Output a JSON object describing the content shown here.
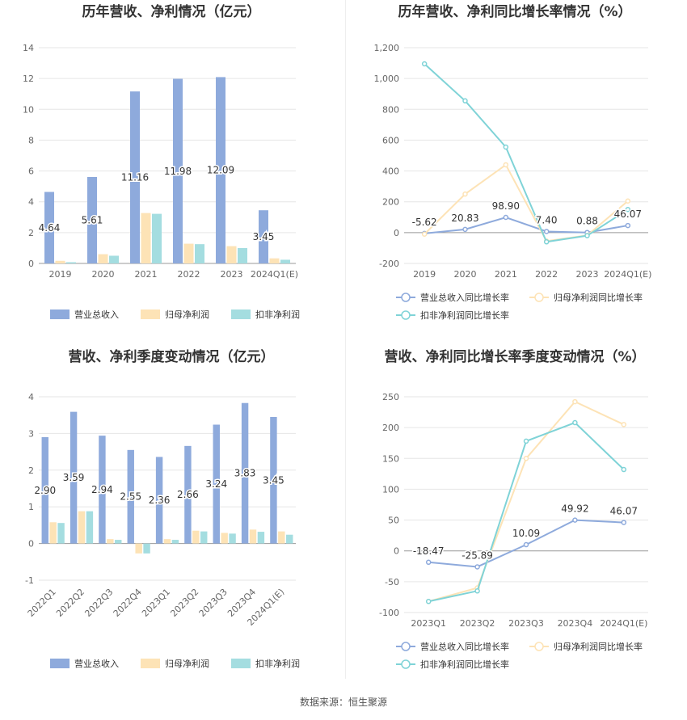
{
  "source": "数据来源：恒生聚源",
  "colors": {
    "revenue": "#8eaadc",
    "netprofit": "#fde3b6",
    "deducted": "#a4dde0",
    "revenue_line": "#8eaadc",
    "netprofit_line": "#fde3b6",
    "deducted_line": "#7fd3d7"
  },
  "chart_data": [
    {
      "id": "annual-bar",
      "type": "bar",
      "title": "历年营收、净利情况（亿元）",
      "categories": [
        "2019",
        "2020",
        "2021",
        "2022",
        "2023",
        "2024Q1(E)"
      ],
      "ylim": [
        0,
        14
      ],
      "yticks": [
        "0",
        "2",
        "4",
        "6",
        "8",
        "10",
        "12",
        "14"
      ],
      "yticks_values": [
        0,
        2,
        4,
        6,
        8,
        10,
        12,
        14
      ],
      "series": [
        {
          "name": "营业总收入",
          "values": [
            4.64,
            5.61,
            11.16,
            11.98,
            12.09,
            3.45
          ],
          "labels": [
            "4.64",
            "5.61",
            "11.16",
            "11.98",
            "12.09",
            "3.45"
          ]
        },
        {
          "name": "归母净利润",
          "values": [
            0.17,
            0.6,
            3.27,
            1.28,
            1.12,
            0.33
          ]
        },
        {
          "name": "扣非净利润",
          "values": [
            0.08,
            0.5,
            3.22,
            1.25,
            1.0,
            0.24
          ]
        }
      ],
      "legend": "bottom"
    },
    {
      "id": "annual-line",
      "type": "line",
      "title": "历年营收、净利同比增长率情况（%）",
      "categories": [
        "2019",
        "2020",
        "2021",
        "2022",
        "2023",
        "2024Q1(E)"
      ],
      "ylim": [
        -200,
        1200
      ],
      "yticks": [
        "-200",
        "0",
        "200",
        "400",
        "600",
        "800",
        "1,000",
        "1,200"
      ],
      "yticks_values": [
        -200,
        0,
        200,
        400,
        600,
        800,
        1000,
        1200
      ],
      "series": [
        {
          "name": "营业总收入同比增长率",
          "values": [
            -5.62,
            20.83,
            98.9,
            7.4,
            0.88,
            46.07
          ],
          "labels": [
            "-5.62",
            "20.83",
            "98.90",
            "7.40",
            "0.88",
            "46.07"
          ]
        },
        {
          "name": "归母净利润同比增长率",
          "values": [
            -10,
            250,
            440,
            -55,
            -18,
            205
          ]
        },
        {
          "name": "扣非净利润同比增长率",
          "values": [
            1095,
            855,
            555,
            -60,
            -20,
            150
          ]
        }
      ],
      "legend": "bottom"
    },
    {
      "id": "quarter-bar",
      "type": "bar",
      "title": "营收、净利季度变动情况（亿元）",
      "categories": [
        "2022Q1",
        "2022Q2",
        "2022Q3",
        "2022Q4",
        "2023Q1",
        "2023Q2",
        "2023Q3",
        "2023Q4",
        "2024Q1(E)"
      ],
      "ylim": [
        -1,
        4
      ],
      "yticks": [
        "-1",
        "0",
        "1",
        "2",
        "3",
        "4"
      ],
      "yticks_values": [
        -1,
        0,
        1,
        2,
        3,
        4
      ],
      "series": [
        {
          "name": "营业总收入",
          "values": [
            2.9,
            3.59,
            2.94,
            2.55,
            2.36,
            2.66,
            3.24,
            3.83,
            3.45
          ],
          "labels": [
            "2.90",
            "3.59",
            "2.94",
            "2.55",
            "2.36",
            "2.66",
            "3.24",
            "3.83",
            "3.45"
          ]
        },
        {
          "name": "归母净利润",
          "values": [
            0.58,
            0.88,
            0.12,
            -0.27,
            0.12,
            0.35,
            0.29,
            0.38,
            0.33
          ]
        },
        {
          "name": "扣非净利润",
          "values": [
            0.56,
            0.88,
            0.1,
            -0.27,
            0.1,
            0.33,
            0.27,
            0.32,
            0.24
          ]
        }
      ],
      "legend": "bottom"
    },
    {
      "id": "quarter-line",
      "type": "line",
      "title": "营收、净利同比增长率季度变动情况（%）",
      "categories": [
        "2023Q1",
        "2023Q2",
        "2023Q3",
        "2023Q4",
        "2024Q1(E)"
      ],
      "ylim": [
        -100,
        250
      ],
      "yticks": [
        "-100",
        "-50",
        "0",
        "50",
        "100",
        "150",
        "200",
        "250"
      ],
      "yticks_values": [
        -100,
        -50,
        0,
        50,
        100,
        150,
        200,
        250
      ],
      "series": [
        {
          "name": "营业总收入同比增长率",
          "values": [
            -18.47,
            -25.89,
            10.09,
            49.92,
            46.07
          ],
          "labels": [
            "-18.47",
            "-25.89",
            "10.09",
            "49.92",
            "46.07"
          ]
        },
        {
          "name": "归母净利润同比增长率",
          "values": [
            -82,
            -60,
            150,
            242,
            205
          ]
        },
        {
          "name": "扣非净利润同比增长率",
          "values": [
            -82,
            -65,
            178,
            208,
            132
          ]
        }
      ],
      "legend": "bottom"
    }
  ]
}
